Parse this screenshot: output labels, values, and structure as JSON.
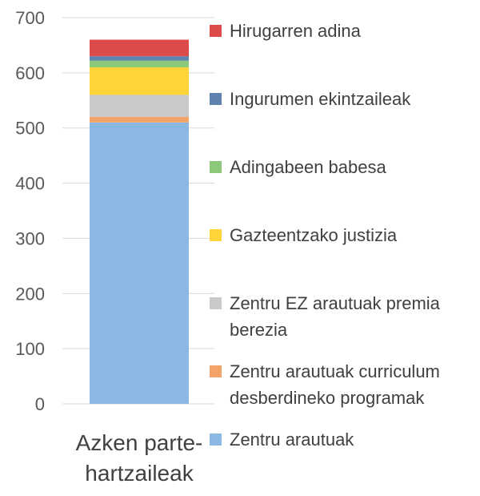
{
  "chart_data": {
    "type": "bar",
    "stacked": true,
    "categories": [
      "Azken parte-hartzaileak"
    ],
    "category_label_lines": [
      "Azken parte-",
      "hartzaileak"
    ],
    "ylim": [
      0,
      700
    ],
    "yticks": [
      0,
      100,
      200,
      300,
      400,
      500,
      600,
      700
    ],
    "grid": true,
    "legend_position": "right",
    "series": [
      {
        "name": "Zentru arautuak",
        "values": [
          510
        ],
        "color": "#8BB8E3"
      },
      {
        "name": "Zentru arautuak curriculum desberdineko programak",
        "values": [
          10
        ],
        "color": "#F4A469"
      },
      {
        "name": "Zentru EZ arautuak premia berezia",
        "values": [
          40
        ],
        "color": "#C9C9C9"
      },
      {
        "name": "Gazteentzako justizia",
        "values": [
          50
        ],
        "color": "#FFD43B"
      },
      {
        "name": "Adingabeen babesa",
        "values": [
          12
        ],
        "color": "#8CC97A"
      },
      {
        "name": "Ingurumen ekintzaileak",
        "values": [
          8
        ],
        "color": "#5E83AE"
      },
      {
        "name": "Hirugarren adina",
        "values": [
          30
        ],
        "color": "#DC4A4A"
      }
    ]
  }
}
